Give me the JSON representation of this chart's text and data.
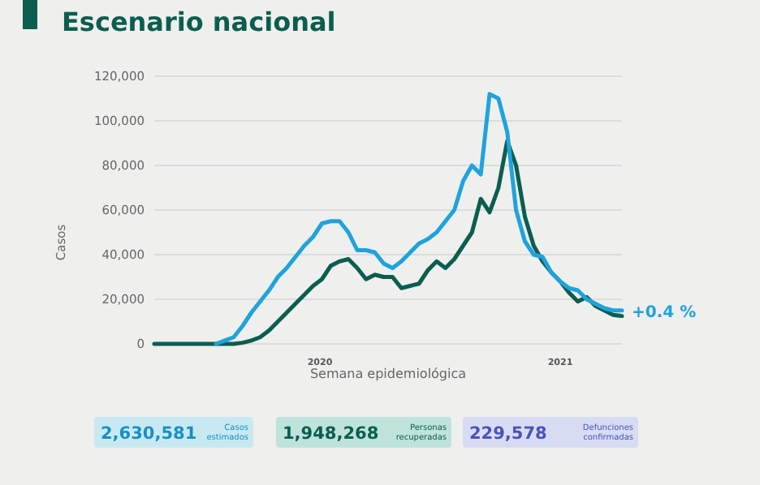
{
  "chart_data": {
    "type": "line",
    "title": "Escenario nacional",
    "xlabel": "Semana epidemiológica",
    "ylabel": "Casos",
    "categories": [
      null,
      null,
      null,
      null,
      null,
      null,
      null,
      null,
      null,
      null,
      null,
      null,
      null,
      null,
      null,
      null,
      null,
      null,
      null,
      null,
      null,
      null,
      null,
      null,
      null,
      null,
      null,
      null,
      null,
      null,
      null,
      null,
      null,
      null,
      null,
      null,
      null,
      null,
      null,
      null,
      null,
      null,
      null,
      null,
      null,
      null,
      null,
      null,
      null,
      null,
      null,
      null,
      null,
      null
    ],
    "series": [
      {
        "color": "#1fa3dc",
        "values": [
          null,
          null,
          null,
          null,
          null,
          null,
          null,
          0,
          1500,
          3000,
          8000,
          14000,
          19000,
          24000,
          30000,
          34000,
          39000,
          44000,
          48000,
          54000,
          55000,
          55000,
          50000,
          42000,
          42000,
          41000,
          36000,
          34000,
          37000,
          41000,
          45000,
          47000,
          50000,
          55000,
          60000,
          73000,
          80000,
          76000,
          112000,
          110000,
          95000,
          60000,
          46000,
          40000,
          39000,
          32000,
          28000,
          25000,
          24000,
          20000,
          18000,
          16000,
          15000,
          15000
        ]
      },
      {
        "color": "#0b5e4f",
        "values": [
          0,
          0,
          0,
          0,
          0,
          0,
          0,
          0,
          0,
          0,
          500,
          1500,
          3000,
          6000,
          10000,
          14000,
          18000,
          22000,
          26000,
          29000,
          35000,
          37000,
          38000,
          34000,
          29000,
          31000,
          30000,
          30000,
          25000,
          26000,
          27000,
          33000,
          37000,
          34000,
          38000,
          44000,
          50000,
          65000,
          59000,
          70000,
          91000,
          80000,
          57000,
          44000,
          37000,
          32000,
          28000,
          23000,
          19000,
          21000,
          17000,
          15000,
          13000,
          12500
        ]
      }
    ],
    "ylim": [
      0,
      120000
    ],
    "yticks": [
      {
        "value": 0,
        "label": "0"
      },
      {
        "value": 20000,
        "label": "20,000"
      },
      {
        "value": 40000,
        "label": "40,000"
      },
      {
        "value": 60000,
        "label": "60,000"
      },
      {
        "value": 80000,
        "label": "80,000"
      },
      {
        "value": 100000,
        "label": "100,000"
      },
      {
        "value": 120000,
        "label": "120,000"
      }
    ],
    "grid": "y",
    "marker": "none",
    "line_style": "solid",
    "annotations": [
      "+0.4 %",
      "2020",
      "2021",
      "2,630,581",
      "Casos estimados",
      "1,948,268",
      "Personas recuperadas",
      "229,578",
      "Defunciones confirmadas"
    ]
  }
}
